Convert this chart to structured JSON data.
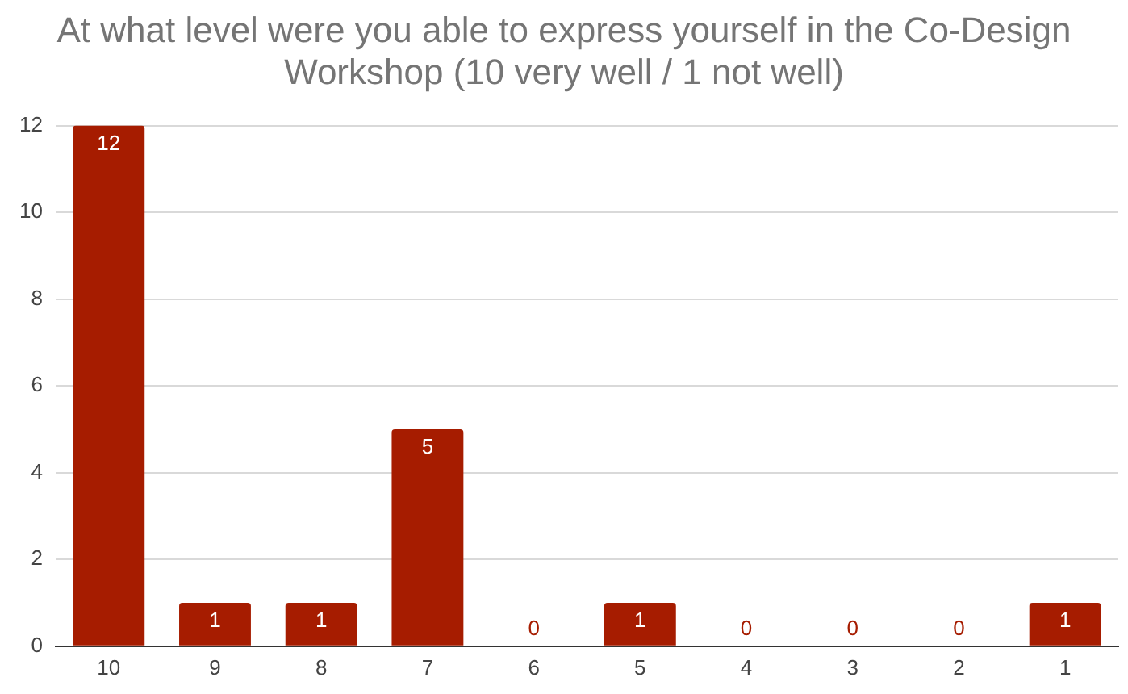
{
  "chart_data": {
    "type": "bar",
    "title": "At what level were you able to express yourself in the Co-Design Workshop (10 very well / 1 not well)",
    "categories": [
      "10",
      "9",
      "8",
      "7",
      "6",
      "5",
      "4",
      "3",
      "2",
      "1"
    ],
    "values": [
      12,
      1,
      1,
      5,
      0,
      1,
      0,
      0,
      0,
      1
    ],
    "color": "#a61c00",
    "ylim": [
      0,
      12
    ],
    "yticks": [
      0,
      2,
      4,
      6,
      8,
      10,
      12
    ],
    "grid": "y",
    "data_labels": true
  }
}
